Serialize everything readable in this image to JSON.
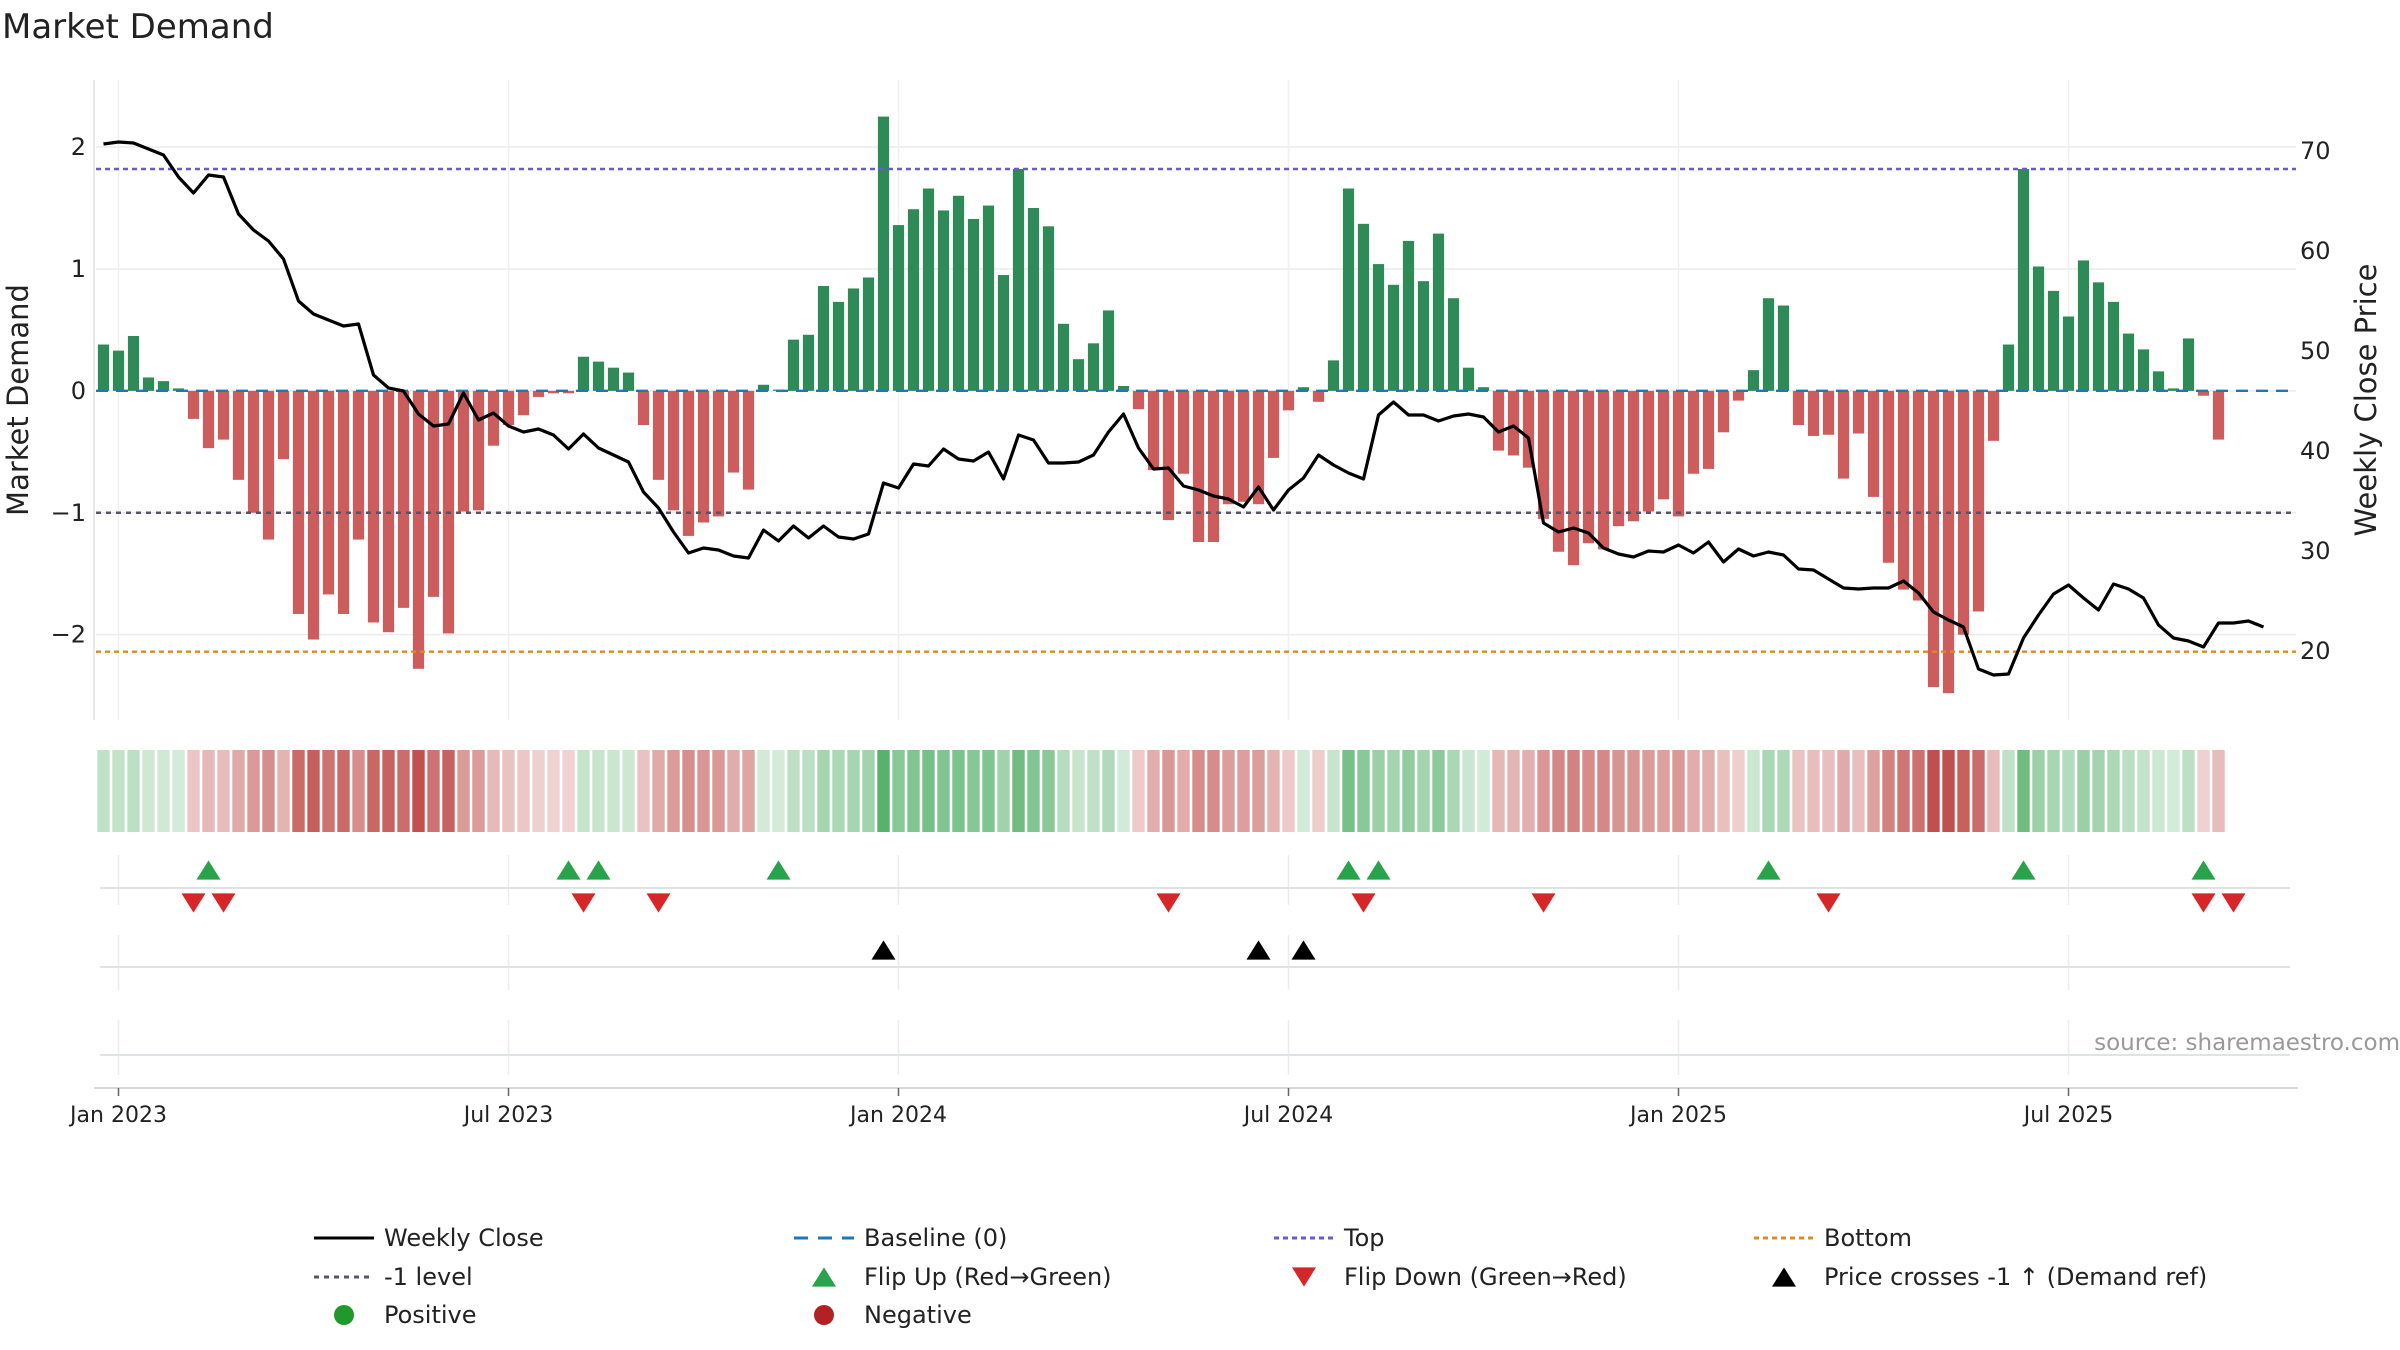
{
  "chart_data": {
    "type": "bar+line",
    "title": "Market Demand",
    "ylabel_left": "Market Demand",
    "ylabel_right": "Weekly Close Price",
    "ylim_left": [
      -2.7,
      2.55
    ],
    "ylim_right": [
      13,
      77
    ],
    "yticks_left": [
      2,
      1,
      0,
      -1,
      -2
    ],
    "yticks_left_labels": [
      "2",
      "1",
      "0",
      "−1",
      "−2"
    ],
    "yticks_right": [
      70,
      60,
      50,
      40,
      30,
      20
    ],
    "yticks_right_labels": [
      "70",
      "60",
      "50",
      "40",
      "30",
      "20"
    ],
    "xticks": [
      1,
      27,
      53,
      79,
      105,
      131
    ],
    "xtick_labels": [
      "Jan 2023",
      "Jul 2023",
      "Jan 2024",
      "Jul 2024",
      "Jan 2025",
      "Jul 2025"
    ],
    "top_level": 1.82,
    "bottom_level": -2.14,
    "minus_one_level": -1,
    "demand": [
      0.38,
      0.33,
      0.45,
      0.11,
      0.08,
      0.02,
      -0.23,
      -0.47,
      -0.4,
      -0.73,
      -1.0,
      -1.22,
      -0.56,
      -1.83,
      -2.04,
      -1.67,
      -1.83,
      -1.22,
      -1.9,
      -1.98,
      -1.78,
      -2.28,
      -1.69,
      -1.99,
      -0.99,
      -0.98,
      -0.45,
      -0.28,
      -0.2,
      -0.05,
      -0.02,
      -0.02,
      0.28,
      0.24,
      0.19,
      0.15,
      -0.28,
      -0.73,
      -0.98,
      -1.19,
      -1.08,
      -1.03,
      -0.67,
      -0.81,
      0.05,
      0.01,
      0.42,
      0.46,
      0.86,
      0.73,
      0.84,
      0.93,
      2.25,
      1.36,
      1.49,
      1.66,
      1.48,
      1.6,
      1.41,
      1.52,
      0.95,
      1.82,
      1.5,
      1.35,
      0.55,
      0.26,
      0.39,
      0.66,
      0.04,
      -0.15,
      -0.65,
      -1.06,
      -0.68,
      -1.24,
      -1.24,
      -0.93,
      -0.91,
      -0.93,
      -0.55,
      -0.16,
      0.03,
      -0.09,
      0.25,
      1.66,
      1.37,
      1.04,
      0.87,
      1.23,
      0.9,
      1.29,
      0.76,
      0.19,
      0.03,
      -0.49,
      -0.53,
      -0.63,
      -1.05,
      -1.32,
      -1.43,
      -1.25,
      -1.3,
      -1.11,
      -1.07,
      -0.99,
      -0.89,
      -1.03,
      -0.68,
      -0.64,
      -0.34,
      -0.08,
      0.17,
      0.76,
      0.7,
      -0.28,
      -0.37,
      -0.36,
      -0.72,
      -0.35,
      -0.87,
      -1.41,
      -1.63,
      -1.72,
      -2.43,
      -2.48,
      -2.0,
      -1.81,
      -0.41,
      0.38,
      1.82,
      1.02,
      0.82,
      0.61,
      1.07,
      0.89,
      0.73,
      0.47,
      0.34,
      0.16,
      0.02,
      0.43,
      -0.04,
      -0.4
    ],
    "weekly_close": [
      70.6,
      70.8,
      70.7,
      70.1,
      69.5,
      67.3,
      65.7,
      67.5,
      67.3,
      63.6,
      62.0,
      60.9,
      59.1,
      54.9,
      53.6,
      53.0,
      52.4,
      52.6,
      47.5,
      46.2,
      45.9,
      43.6,
      42.4,
      42.6,
      45.7,
      43.0,
      43.7,
      42.4,
      41.8,
      42.1,
      41.5,
      40.1,
      41.6,
      40.2,
      39.5,
      38.8,
      35.8,
      34.2,
      31.8,
      29.7,
      30.2,
      30.0,
      29.4,
      29.2,
      32.0,
      30.9,
      32.4,
      31.2,
      32.4,
      31.3,
      31.1,
      31.6,
      36.7,
      36.2,
      38.6,
      38.4,
      40.1,
      39.1,
      38.9,
      39.8,
      37.1,
      41.5,
      41.0,
      38.7,
      38.7,
      38.8,
      39.5,
      41.8,
      43.6,
      40.2,
      38.1,
      38.2,
      36.4,
      36.0,
      35.4,
      35.1,
      34.3,
      36.3,
      34.0,
      36.0,
      37.2,
      39.5,
      38.5,
      37.7,
      37.1,
      43.5,
      44.8,
      43.5,
      43.5,
      42.9,
      43.4,
      43.6,
      43.3,
      41.8,
      42.4,
      41.2,
      32.7,
      31.8,
      32.2,
      31.7,
      30.2,
      29.6,
      29.3,
      29.9,
      29.8,
      30.5,
      29.7,
      30.8,
      28.8,
      30.1,
      29.4,
      29.8,
      29.5,
      28.1,
      28.0,
      27.1,
      26.2,
      26.1,
      26.2,
      26.2,
      26.9,
      25.7,
      23.8,
      23.0,
      22.3,
      18.1,
      17.5,
      17.6,
      21.2,
      23.5,
      25.6,
      26.5,
      25.2,
      24.0,
      26.6,
      26.1,
      25.2,
      22.5,
      21.2,
      20.9,
      20.3,
      22.7,
      22.7,
      22.9,
      22.3
    ],
    "flip_up": [
      7,
      31,
      33,
      45,
      83,
      85,
      111,
      128,
      140
    ],
    "flip_down": [
      6,
      8,
      32,
      37,
      71,
      84,
      96,
      115,
      140,
      142
    ],
    "price_cross": [
      52,
      77,
      80
    ],
    "legend": {
      "weekly_close": "Weekly Close",
      "baseline": "Baseline (0)",
      "top": "Top",
      "bottom": "Bottom",
      "minus_one": "-1 level",
      "flip_up": "Flip Up (Red→Green)",
      "flip_down": "Flip Down (Green→Red)",
      "price_cross": "Price crosses -1 ↑ (Demand ref)",
      "positive": "Positive",
      "negative": "Negative"
    },
    "source": "source: sharemaestro.com"
  },
  "colors": {
    "positive": "#2e8b57",
    "negative": "#cd5c5c",
    "line": "#000000",
    "baseline": "#1f77b4",
    "top": "#6a5acd",
    "bottom": "#e08a1e",
    "minus_one": "#555566",
    "flip_up": "#27a34a",
    "flip_down": "#d62728",
    "positive_dot": "#1f9a2a",
    "negative_dot": "#b22222"
  }
}
